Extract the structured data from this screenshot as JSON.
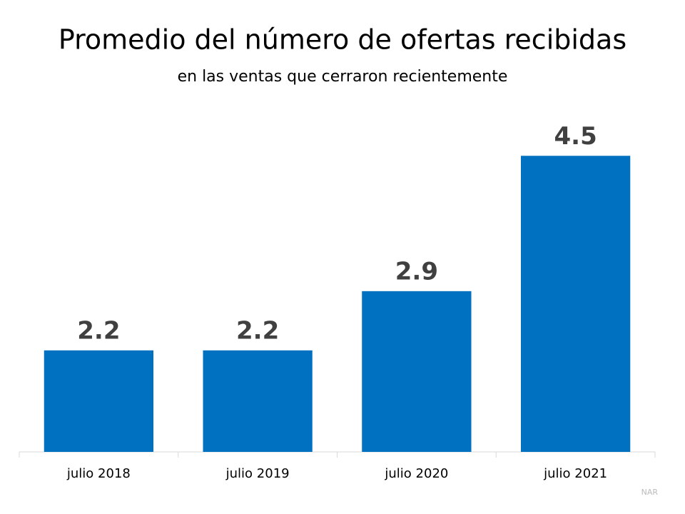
{
  "chart_data": {
    "type": "bar",
    "title": "Promedio del número de ofertas recibidas",
    "subtitle": "en las ventas que cerraron recientemente",
    "categories": [
      "julio 2018",
      "julio 2019",
      "julio 2020",
      "julio 2021"
    ],
    "values": [
      2.2,
      2.2,
      2.9,
      4.5
    ],
    "color": "#0070c0",
    "ylim": [
      1,
      5
    ],
    "source": "NAR"
  }
}
